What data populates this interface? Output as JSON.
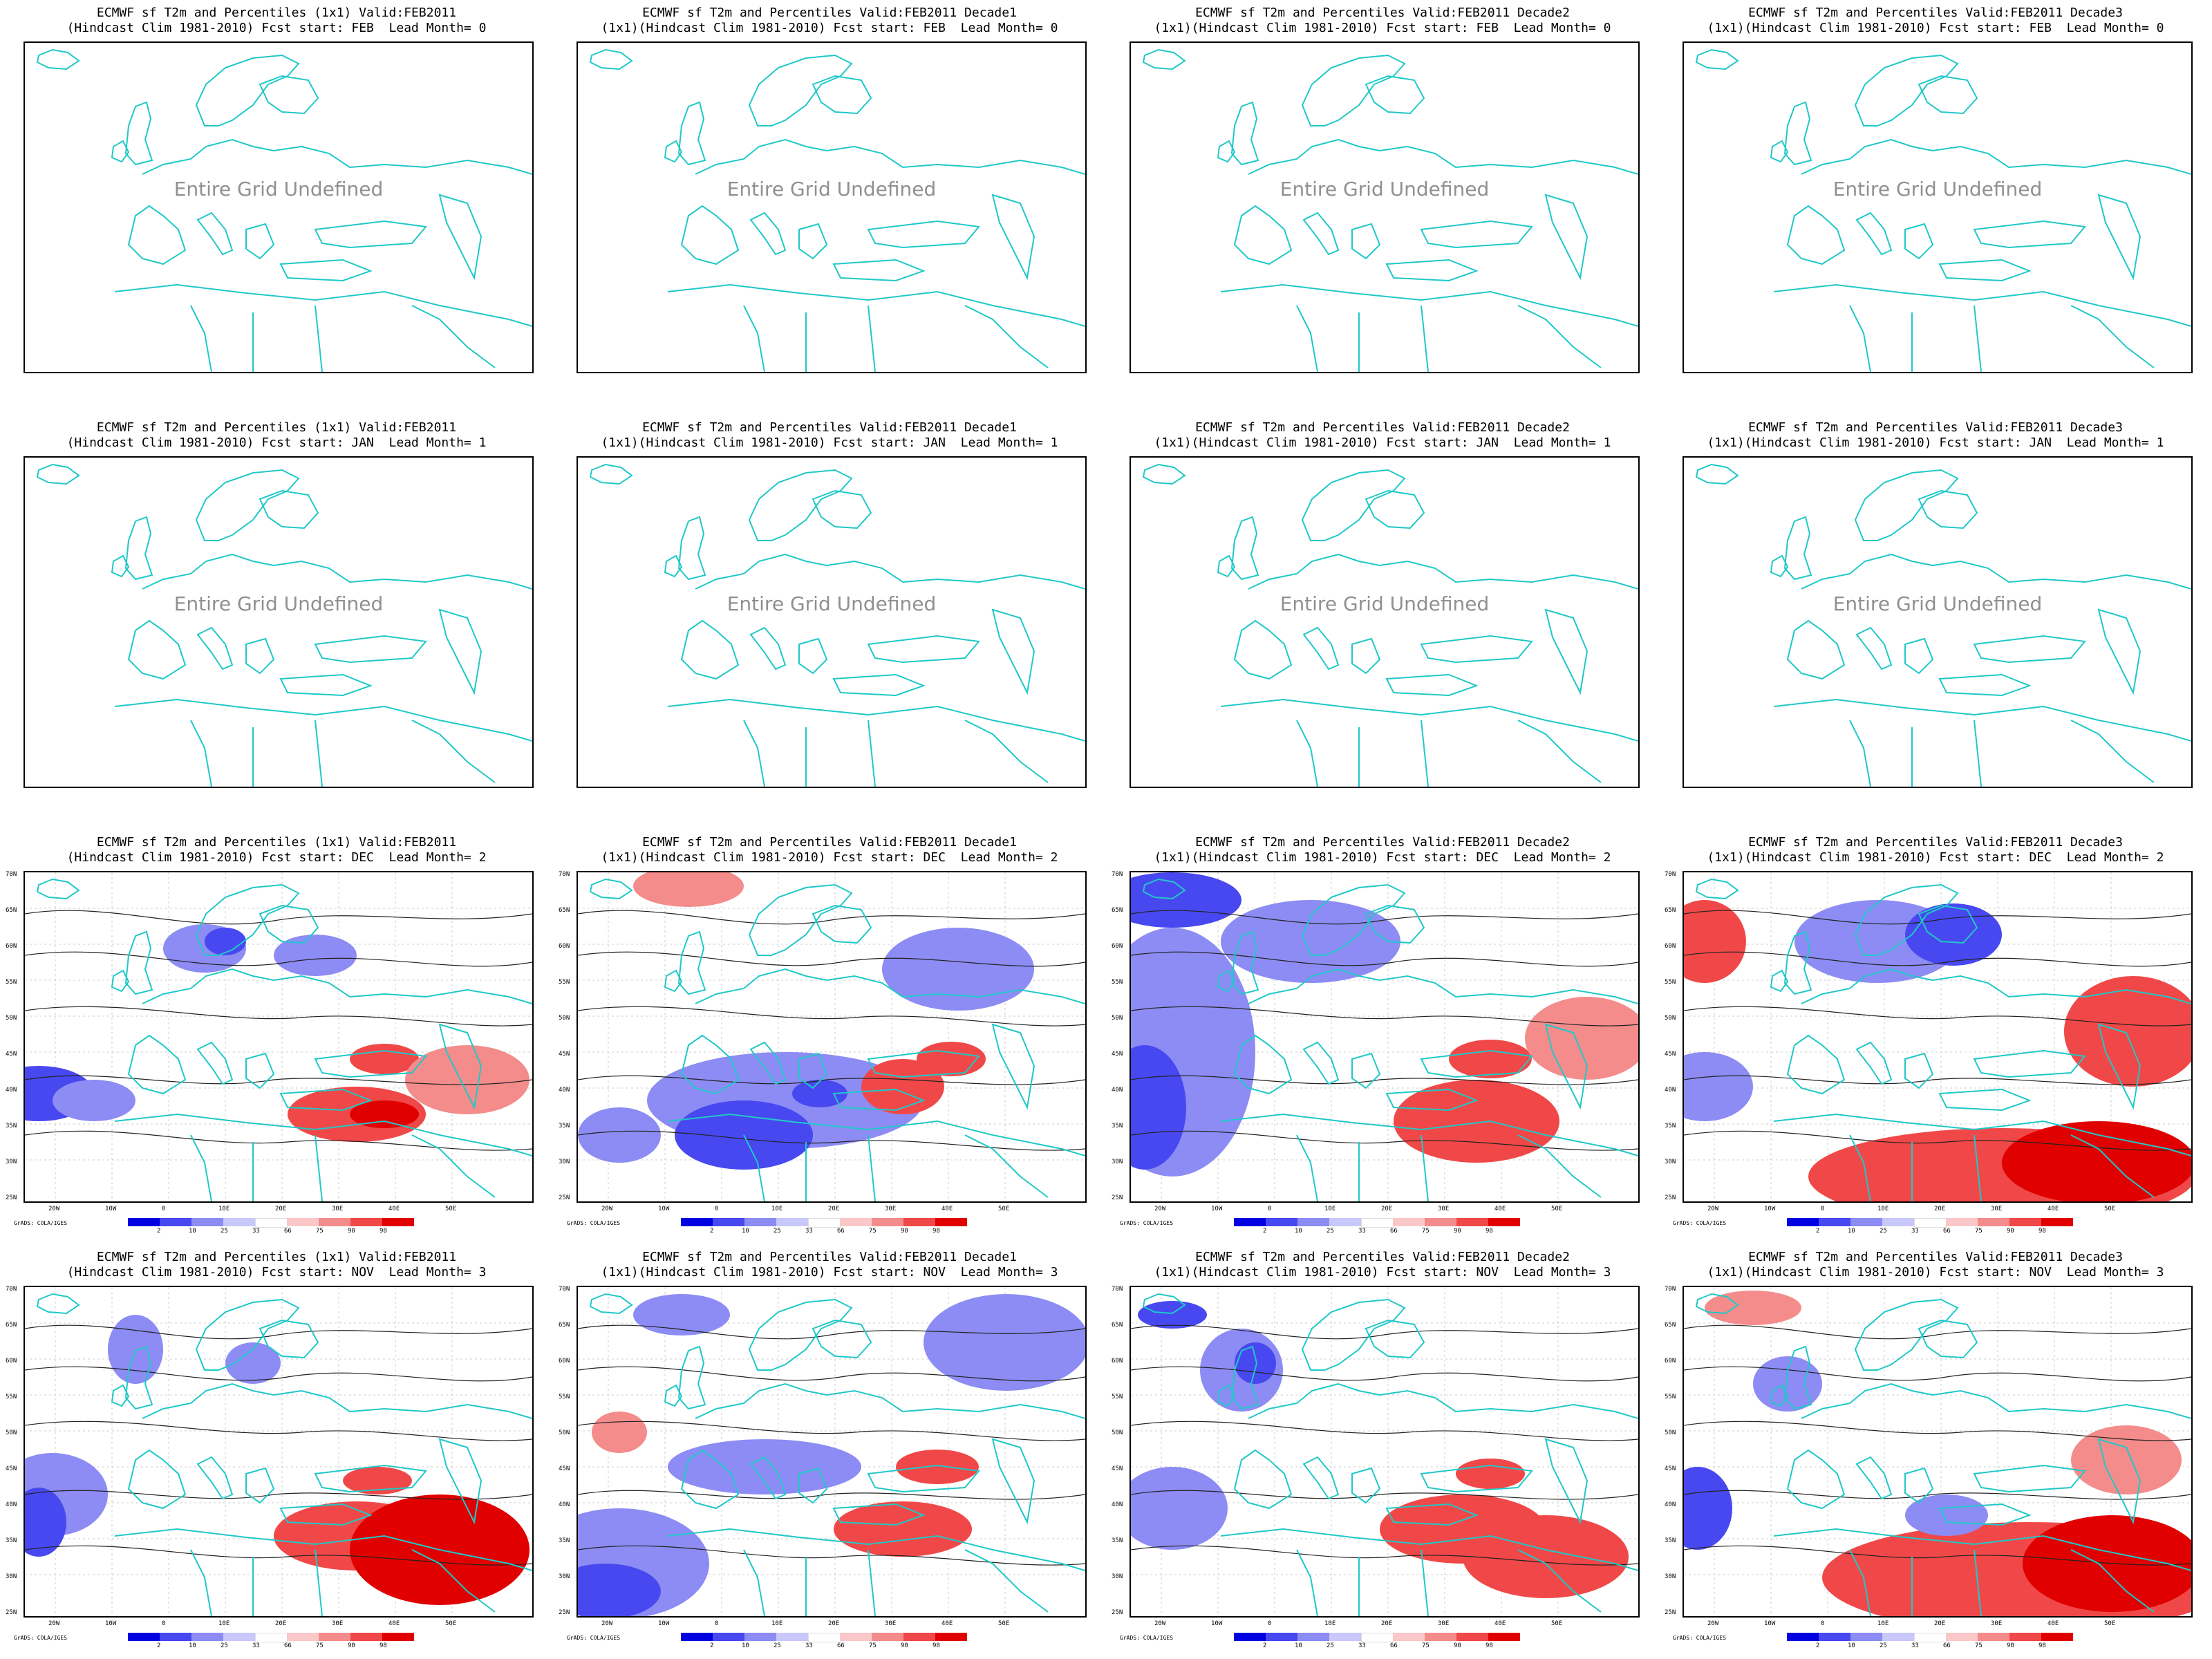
{
  "panels": [
    {
      "title1": "ECMWF sf T2m and Percentiles (1x1) Valid:FEB2011",
      "title2": "(Hindcast Clim 1981-2010) Fcst start: FEB  Lead Month= 0",
      "undefined_text": "Entire Grid Undefined",
      "has_data": false
    },
    {
      "title1": "ECMWF sf T2m and Percentiles Valid:FEB2011 Decade1",
      "title2": "(1x1)(Hindcast Clim 1981-2010) Fcst start: FEB  Lead Month= 0",
      "undefined_text": "Entire Grid Undefined",
      "has_data": false
    },
    {
      "title1": "ECMWF sf T2m and Percentiles Valid:FEB2011 Decade2",
      "title2": "(1x1)(Hindcast Clim 1981-2010) Fcst start: FEB  Lead Month= 0",
      "undefined_text": "Entire Grid Undefined",
      "has_data": false
    },
    {
      "title1": "ECMWF sf T2m and Percentiles Valid:FEB2011 Decade3",
      "title2": "(1x1)(Hindcast Clim 1981-2010) Fcst start: FEB  Lead Month= 0",
      "undefined_text": "Entire Grid Undefined",
      "has_data": false
    },
    {
      "title1": "ECMWF sf T2m and Percentiles (1x1) Valid:FEB2011",
      "title2": "(Hindcast Clim 1981-2010) Fcst start: JAN  Lead Month= 1",
      "undefined_text": "Entire Grid Undefined",
      "has_data": false
    },
    {
      "title1": "ECMWF sf T2m and Percentiles Valid:FEB2011 Decade1",
      "title2": "(1x1)(Hindcast Clim 1981-2010) Fcst start: JAN  Lead Month= 1",
      "undefined_text": "Entire Grid Undefined",
      "has_data": false
    },
    {
      "title1": "ECMWF sf T2m and Percentiles Valid:FEB2011 Decade2",
      "title2": "(1x1)(Hindcast Clim 1981-2010) Fcst start: JAN  Lead Month= 1",
      "undefined_text": "Entire Grid Undefined",
      "has_data": false
    },
    {
      "title1": "ECMWF sf T2m and Percentiles Valid:FEB2011 Decade3",
      "title2": "(1x1)(Hindcast Clim 1981-2010) Fcst start: JAN  Lead Month= 1",
      "undefined_text": "Entire Grid Undefined",
      "has_data": false
    },
    {
      "title1": "ECMWF sf T2m and Percentiles (1x1) Valid:FEB2011",
      "title2": "(Hindcast Clim 1981-2010) Fcst start: DEC  Lead Month= 2",
      "undefined_text": "",
      "has_data": true
    },
    {
      "title1": "ECMWF sf T2m and Percentiles Valid:FEB2011 Decade1",
      "title2": "(1x1)(Hindcast Clim 1981-2010) Fcst start: DEC  Lead Month= 2",
      "undefined_text": "",
      "has_data": true
    },
    {
      "title1": "ECMWF sf T2m and Percentiles Valid:FEB2011 Decade2",
      "title2": "(1x1)(Hindcast Clim 1981-2010) Fcst start: DEC  Lead Month= 2",
      "undefined_text": "",
      "has_data": true
    },
    {
      "title1": "ECMWF sf T2m and Percentiles Valid:FEB2011 Decade3",
      "title2": "(1x1)(Hindcast Clim 1981-2010) Fcst start: DEC  Lead Month= 2",
      "undefined_text": "",
      "has_data": true
    },
    {
      "title1": "ECMWF sf T2m and Percentiles (1x1) Valid:FEB2011",
      "title2": "(Hindcast Clim 1981-2010) Fcst start: NOV  Lead Month= 3",
      "undefined_text": "",
      "has_data": true
    },
    {
      "title1": "ECMWF sf T2m and Percentiles Valid:FEB2011 Decade1",
      "title2": "(1x1)(Hindcast Clim 1981-2010) Fcst start: NOV  Lead Month= 3",
      "undefined_text": "",
      "has_data": true
    },
    {
      "title1": "ECMWF sf T2m and Percentiles Valid:FEB2011 Decade2",
      "title2": "(1x1)(Hindcast Clim 1981-2010) Fcst start: NOV  Lead Month= 3",
      "undefined_text": "",
      "has_data": true
    },
    {
      "title1": "ECMWF sf T2m and Percentiles Valid:FEB2011 Decade3",
      "title2": "(1x1)(Hindcast Clim 1981-2010) Fcst start: NOV  Lead Month= 3",
      "undefined_text": "",
      "has_data": true
    }
  ],
  "lat_labels": [
    "70N",
    "65N",
    "60N",
    "55N",
    "50N",
    "45N",
    "40N",
    "35N",
    "30N",
    "25N"
  ],
  "lon_labels": [
    "20W",
    "10W",
    "0",
    "10E",
    "20E",
    "30E",
    "40E",
    "50E"
  ],
  "colorbar": {
    "labels": [
      "2",
      "10",
      "25",
      "33",
      "66",
      "75",
      "90",
      "98"
    ],
    "colors": [
      "#0000e0",
      "#4848f0",
      "#8c8cf4",
      "#c8c8fa",
      "#ffffff",
      "#fac8c8",
      "#f48c8c",
      "#f04848",
      "#e00000"
    ]
  },
  "credit": "GrADS: COLA/IGES",
  "coast_color": "#20c8c8"
}
